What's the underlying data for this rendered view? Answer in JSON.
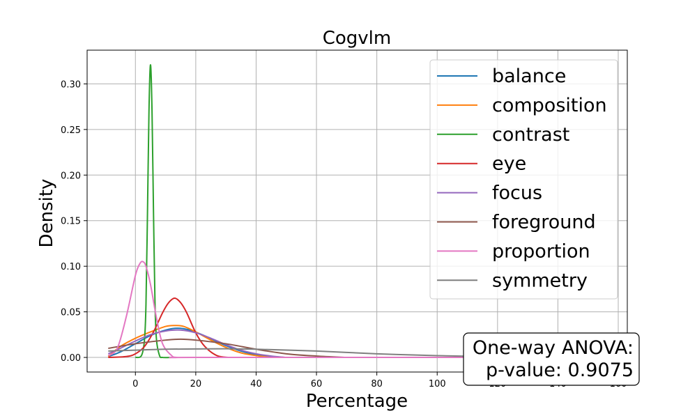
{
  "chart_data": {
    "type": "line",
    "title": "Cogvlm",
    "xlabel": "Percentage",
    "ylabel": "Density",
    "xlim": [
      -16,
      163
    ],
    "ylim": [
      -0.016,
      0.337
    ],
    "xticks": [
      0,
      20,
      40,
      60,
      80,
      100,
      120,
      140,
      160
    ],
    "xtick_labels": [
      "0",
      "20",
      "40",
      "60",
      "80",
      "100",
      "120",
      "140",
      "160"
    ],
    "yticks": [
      0.0,
      0.05,
      0.1,
      0.15,
      0.2,
      0.25,
      0.3
    ],
    "ytick_labels": [
      "0.00",
      "0.05",
      "0.10",
      "0.15",
      "0.20",
      "0.25",
      "0.30"
    ],
    "grid": true,
    "legend_position": "top-right",
    "series": [
      {
        "name": "balance",
        "color": "#1f77b4",
        "x": [
          -9,
          -5,
          0,
          5,
          10,
          14,
          18,
          22,
          26,
          30,
          35,
          40,
          45,
          50
        ],
        "y": [
          0.001,
          0.006,
          0.015,
          0.024,
          0.03,
          0.032,
          0.03,
          0.025,
          0.019,
          0.013,
          0.007,
          0.003,
          0.001,
          0.0
        ]
      },
      {
        "name": "composition",
        "color": "#ff7f0e",
        "x": [
          -9,
          -5,
          0,
          5,
          10,
          13,
          16,
          20,
          25,
          30,
          35,
          40,
          45
        ],
        "y": [
          0.001,
          0.012,
          0.021,
          0.028,
          0.034,
          0.035,
          0.034,
          0.028,
          0.019,
          0.011,
          0.005,
          0.002,
          0.0
        ]
      },
      {
        "name": "contrast",
        "color": "#2ca02c",
        "x": [
          0,
          2,
          3,
          3.5,
          4,
          4.5,
          5,
          5.5,
          6,
          6.5,
          7,
          8,
          9,
          12
        ],
        "y": [
          0.0,
          0.002,
          0.019,
          0.058,
          0.158,
          0.271,
          0.321,
          0.271,
          0.158,
          0.058,
          0.019,
          0.002,
          0.0,
          0.0
        ]
      },
      {
        "name": "eye",
        "color": "#d62728",
        "x": [
          -9,
          -3,
          0,
          3,
          6,
          9,
          11,
          13,
          15,
          17,
          20,
          23,
          27,
          31
        ],
        "y": [
          0.0,
          0.001,
          0.004,
          0.012,
          0.028,
          0.049,
          0.06,
          0.065,
          0.06,
          0.049,
          0.027,
          0.012,
          0.002,
          0.0
        ]
      },
      {
        "name": "focus",
        "color": "#9467bd",
        "x": [
          -9,
          -5,
          0,
          5,
          10,
          15,
          20,
          25,
          30,
          35,
          40,
          45,
          50
        ],
        "y": [
          0.004,
          0.01,
          0.018,
          0.025,
          0.029,
          0.03,
          0.027,
          0.021,
          0.014,
          0.008,
          0.004,
          0.0015,
          0.0
        ]
      },
      {
        "name": "foreground",
        "color": "#8c564b",
        "x": [
          -9,
          0,
          10,
          15,
          20,
          30,
          40,
          50,
          60,
          70
        ],
        "y": [
          0.01,
          0.015,
          0.019,
          0.02,
          0.019,
          0.015,
          0.009,
          0.004,
          0.0015,
          0.0
        ]
      },
      {
        "name": "proportion",
        "color": "#e377c2",
        "x": [
          -9,
          -6,
          -3,
          0,
          1.5,
          2.5,
          3.5,
          5,
          7,
          9,
          12,
          14,
          20,
          110
        ],
        "y": [
          0.002,
          0.01,
          0.045,
          0.09,
          0.103,
          0.105,
          0.1,
          0.08,
          0.043,
          0.015,
          0.002,
          0.0,
          0.0,
          0.0
        ]
      },
      {
        "name": "symmetry",
        "color": "#7f7f7f",
        "x": [
          -9,
          0,
          10,
          20,
          30,
          40,
          60,
          80,
          100,
          115
        ],
        "y": [
          0.007,
          0.008,
          0.009,
          0.0093,
          0.0095,
          0.009,
          0.007,
          0.004,
          0.002,
          0.001
        ]
      }
    ],
    "annotation": {
      "line1": "One-way ANOVA:",
      "line2": "p-value: 0.9075"
    }
  }
}
